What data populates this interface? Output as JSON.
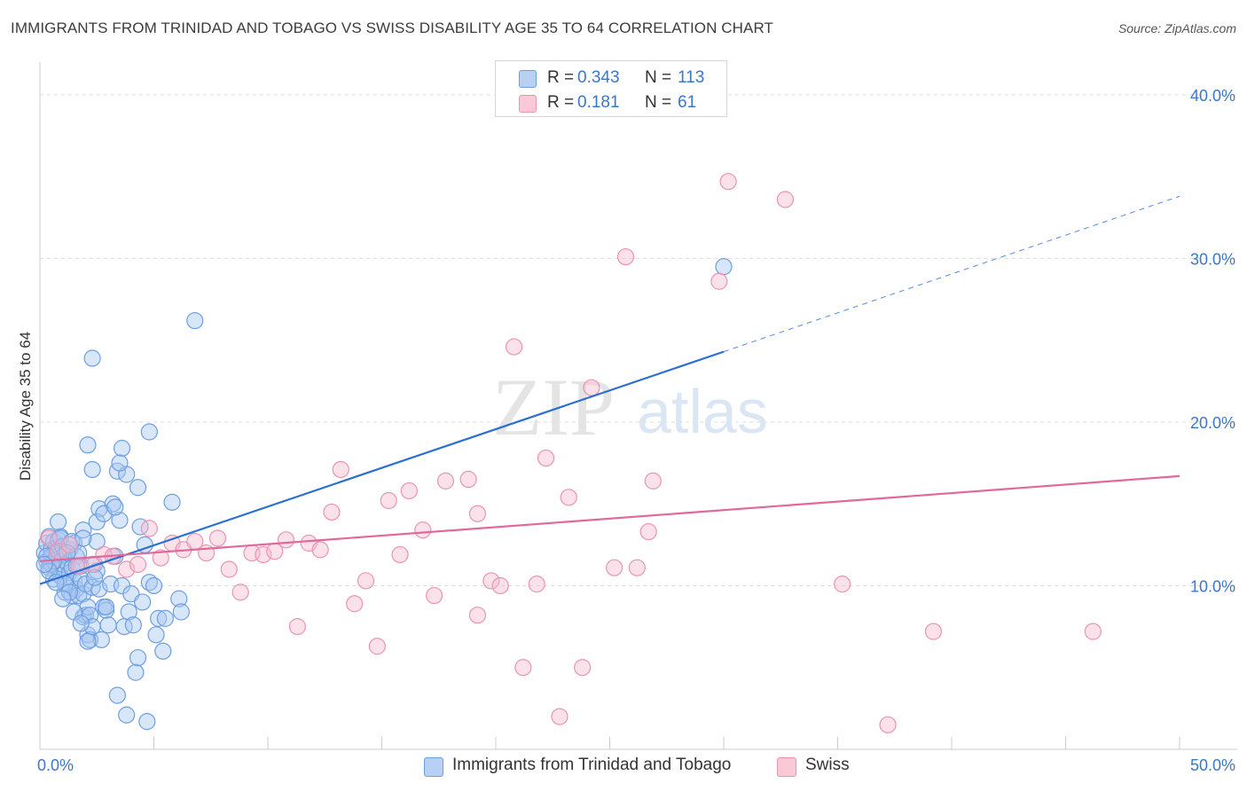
{
  "title": "IMMIGRANTS FROM TRINIDAD AND TOBAGO VS SWISS DISABILITY AGE 35 TO 64 CORRELATION CHART",
  "source": "Source: ZipAtlas.com",
  "watermark": {
    "zip": "ZIP",
    "atlas": "atlas"
  },
  "legend": {
    "rows": [
      {
        "r_label": "R =",
        "r_value": "0.343",
        "n_label": "N =",
        "n_value": "113"
      },
      {
        "r_label": "R =",
        "r_value": "0.181",
        "n_label": "N =",
        "n_value": "61"
      }
    ]
  },
  "bottom_legend": {
    "series1": "Immigrants from Trinidad and Tobago",
    "series2": "Swiss"
  },
  "colors": {
    "blue_fill": "#a9c8f2",
    "blue_stroke": "#6d9ee0",
    "blue_line": "#2a6fd1",
    "pink_fill": "#f7bdd0",
    "pink_stroke": "#e994b1",
    "pink_line": "#e0689a",
    "tick_label": "#3b77c9",
    "grid": "#dddddd"
  },
  "chart_data": {
    "type": "scatter",
    "title": "IMMIGRANTS FROM TRINIDAD AND TOBAGO VS SWISS DISABILITY AGE 35 TO 64 CORRELATION CHART",
    "xlabel": "",
    "ylabel": "Disability Age 35 to 64",
    "xlim": [
      0,
      50
    ],
    "ylim": [
      0,
      42
    ],
    "x_tick_labels": [
      {
        "value": 0,
        "label": "0.0%"
      },
      {
        "value": 50,
        "label": "50.0%"
      }
    ],
    "y_tick_labels": [
      {
        "value": 10,
        "label": "10.0%"
      },
      {
        "value": 20,
        "label": "20.0%"
      },
      {
        "value": 30,
        "label": "30.0%"
      },
      {
        "value": 40,
        "label": "40.0%"
      }
    ],
    "series": [
      {
        "name": "Immigrants from Trinidad and Tobago",
        "R": 0.343,
        "N": 113,
        "trend": {
          "x0": 0,
          "y0": 10.1,
          "x1": 30,
          "y1": 24.3,
          "dash_x1": 50,
          "dash_y1": 33.8
        },
        "points": [
          [
            0.2,
            12.0
          ],
          [
            0.3,
            11.5
          ],
          [
            0.3,
            12.6
          ],
          [
            0.4,
            13.0
          ],
          [
            0.4,
            11.1
          ],
          [
            0.5,
            12.2
          ],
          [
            0.5,
            11.8
          ],
          [
            0.6,
            10.4
          ],
          [
            0.6,
            12.7
          ],
          [
            0.7,
            11.6
          ],
          [
            0.7,
            12.3
          ],
          [
            0.8,
            11.0
          ],
          [
            0.8,
            12.8
          ],
          [
            0.9,
            13.0
          ],
          [
            0.9,
            10.6
          ],
          [
            1.0,
            11.3
          ],
          [
            1.0,
            12.4
          ],
          [
            1.1,
            11.9
          ],
          [
            1.1,
            9.6
          ],
          [
            1.2,
            10.1
          ],
          [
            1.2,
            11.4
          ],
          [
            1.3,
            12.2
          ],
          [
            1.3,
            10.8
          ],
          [
            1.4,
            9.4
          ],
          [
            1.4,
            11.1
          ],
          [
            1.5,
            12.6
          ],
          [
            1.5,
            10.3
          ],
          [
            1.6,
            9.8
          ],
          [
            1.6,
            11.8
          ],
          [
            1.7,
            12.0
          ],
          [
            1.7,
            9.4
          ],
          [
            1.8,
            11.2
          ],
          [
            1.8,
            10.4
          ],
          [
            1.9,
            9.5
          ],
          [
            1.9,
            8.1
          ],
          [
            2.0,
            10.1
          ],
          [
            2.0,
            8.2
          ],
          [
            2.1,
            7.0
          ],
          [
            2.1,
            8.7
          ],
          [
            2.2,
            8.2
          ],
          [
            2.2,
            6.7
          ],
          [
            2.3,
            9.9
          ],
          [
            2.3,
            7.5
          ],
          [
            2.4,
            11.3
          ],
          [
            2.5,
            10.9
          ],
          [
            2.5,
            12.7
          ],
          [
            2.6,
            14.7
          ],
          [
            2.6,
            9.8
          ],
          [
            2.7,
            6.7
          ],
          [
            2.8,
            8.7
          ],
          [
            2.9,
            8.5
          ],
          [
            3.0,
            7.6
          ],
          [
            3.1,
            10.1
          ],
          [
            3.2,
            15.0
          ],
          [
            3.3,
            11.8
          ],
          [
            3.4,
            17.0
          ],
          [
            3.5,
            14.0
          ],
          [
            3.6,
            10.0
          ],
          [
            3.7,
            7.5
          ],
          [
            3.8,
            16.8
          ],
          [
            3.9,
            8.4
          ],
          [
            4.0,
            9.5
          ],
          [
            4.1,
            7.6
          ],
          [
            4.2,
            4.7
          ],
          [
            4.4,
            13.6
          ],
          [
            4.5,
            9.0
          ],
          [
            4.6,
            12.5
          ],
          [
            4.8,
            10.2
          ],
          [
            5.0,
            10.0
          ],
          [
            5.1,
            7.0
          ],
          [
            5.2,
            8.0
          ],
          [
            5.5,
            8.0
          ],
          [
            5.4,
            6.0
          ],
          [
            4.8,
            19.4
          ],
          [
            4.3,
            16.0
          ],
          [
            3.6,
            18.4
          ],
          [
            3.5,
            17.5
          ],
          [
            2.1,
            18.6
          ],
          [
            2.3,
            17.1
          ],
          [
            2.3,
            23.9
          ],
          [
            5.8,
            15.1
          ],
          [
            6.1,
            9.2
          ],
          [
            6.2,
            8.4
          ],
          [
            6.8,
            26.2
          ],
          [
            4.3,
            5.6
          ],
          [
            3.4,
            3.3
          ],
          [
            3.8,
            2.1
          ],
          [
            4.7,
            1.7
          ],
          [
            0.8,
            13.9
          ],
          [
            1.9,
            13.4
          ],
          [
            2.5,
            13.9
          ],
          [
            0.9,
            12.9
          ],
          [
            1.4,
            12.7
          ],
          [
            1.6,
            11.2
          ],
          [
            0.5,
            11.3
          ],
          [
            0.6,
            11.5
          ],
          [
            1.1,
            10.1
          ],
          [
            1.3,
            9.6
          ],
          [
            1.5,
            8.4
          ],
          [
            1.8,
            7.7
          ],
          [
            2.1,
            6.6
          ],
          [
            2.9,
            8.7
          ],
          [
            0.3,
            11.8
          ],
          [
            0.4,
            10.9
          ],
          [
            0.7,
            10.2
          ],
          [
            1.0,
            9.2
          ],
          [
            1.2,
            12.0
          ],
          [
            2.8,
            14.4
          ],
          [
            3.3,
            14.8
          ],
          [
            30.0,
            29.5
          ],
          [
            1.9,
            12.9
          ],
          [
            2.4,
            10.5
          ],
          [
            0.2,
            11.3
          ]
        ]
      },
      {
        "name": "Swiss",
        "R": 0.181,
        "N": 61,
        "trend": {
          "x0": 0,
          "y0": 11.5,
          "x1": 50,
          "y1": 16.7
        },
        "points": [
          [
            0.4,
            12.9
          ],
          [
            0.8,
            12.1
          ],
          [
            1.3,
            12.5
          ],
          [
            1.7,
            11.2
          ],
          [
            2.3,
            11.3
          ],
          [
            2.8,
            11.9
          ],
          [
            3.2,
            11.8
          ],
          [
            3.8,
            11.0
          ],
          [
            4.3,
            11.3
          ],
          [
            4.8,
            13.5
          ],
          [
            5.3,
            11.7
          ],
          [
            5.8,
            12.6
          ],
          [
            6.3,
            12.2
          ],
          [
            6.8,
            12.7
          ],
          [
            7.3,
            12.0
          ],
          [
            7.8,
            12.9
          ],
          [
            8.3,
            11.0
          ],
          [
            8.8,
            9.6
          ],
          [
            9.3,
            12.0
          ],
          [
            9.8,
            11.9
          ],
          [
            10.3,
            12.1
          ],
          [
            10.8,
            12.8
          ],
          [
            11.3,
            7.5
          ],
          [
            11.8,
            12.6
          ],
          [
            12.3,
            12.2
          ],
          [
            12.8,
            14.5
          ],
          [
            13.2,
            17.1
          ],
          [
            13.8,
            8.9
          ],
          [
            14.3,
            10.3
          ],
          [
            14.8,
            6.3
          ],
          [
            15.3,
            15.2
          ],
          [
            15.8,
            11.9
          ],
          [
            16.2,
            15.8
          ],
          [
            16.8,
            13.4
          ],
          [
            17.3,
            9.4
          ],
          [
            17.8,
            16.4
          ],
          [
            18.8,
            16.5
          ],
          [
            19.2,
            14.4
          ],
          [
            19.2,
            8.2
          ],
          [
            19.8,
            10.3
          ],
          [
            20.2,
            10.0
          ],
          [
            20.8,
            24.6
          ],
          [
            21.2,
            5.0
          ],
          [
            21.8,
            10.1
          ],
          [
            22.2,
            17.8
          ],
          [
            22.8,
            2.0
          ],
          [
            23.2,
            15.4
          ],
          [
            23.8,
            5.0
          ],
          [
            24.2,
            22.1
          ],
          [
            25.2,
            11.1
          ],
          [
            25.7,
            30.1
          ],
          [
            26.2,
            11.1
          ],
          [
            26.7,
            13.3
          ],
          [
            26.9,
            16.4
          ],
          [
            29.8,
            28.6
          ],
          [
            30.2,
            34.7
          ],
          [
            32.7,
            33.6
          ],
          [
            35.2,
            10.1
          ],
          [
            37.2,
            1.5
          ],
          [
            39.2,
            7.2
          ],
          [
            46.2,
            7.2
          ]
        ]
      }
    ]
  }
}
